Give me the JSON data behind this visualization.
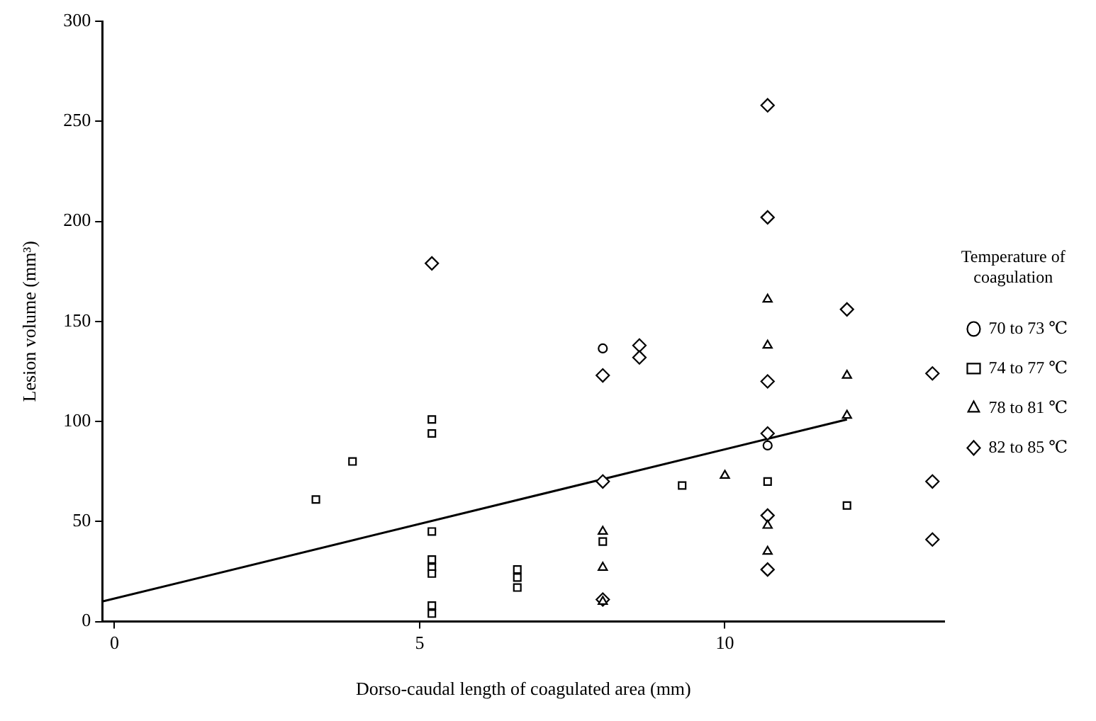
{
  "chart_data": {
    "type": "scatter",
    "xlabel": "Dorso-caudal length of coagulated area (mm)",
    "ylabel": "Lesion volume (mm³)",
    "legend_title": "Temperature of coagulation",
    "legend": "right",
    "xlim": [
      -0.2,
      13.6
    ],
    "xticks": [
      0,
      5,
      10
    ],
    "ylim": [
      0,
      300
    ],
    "yticks": [
      0,
      50,
      100,
      150,
      200,
      250,
      300
    ],
    "series": [
      {
        "name": "70 to 73 ℃",
        "color": "#000000",
        "marker": "circle",
        "x": [
          8.0,
          10.7
        ],
        "values": [
          136.5,
          88
        ]
      },
      {
        "name": "74 to 77 ℃",
        "color": "#000000",
        "marker": "square",
        "x": [
          3.3,
          3.9,
          5.2,
          5.2,
          5.2,
          5.2,
          5.2,
          5.2,
          5.2,
          5.2,
          6.6,
          6.6,
          6.6,
          8.0,
          9.3,
          10.7,
          12.0
        ],
        "values": [
          61,
          80,
          101,
          94,
          45,
          31,
          27,
          24,
          8,
          4,
          26,
          22,
          17,
          40,
          68,
          70,
          58
        ]
      },
      {
        "name": "78 to 81 ℃",
        "color": "#000000",
        "marker": "triangle",
        "x": [
          8.0,
          8.0,
          8.0,
          10.0,
          10.7,
          10.7,
          10.7,
          10.7,
          12.0,
          12.0
        ],
        "values": [
          45,
          27,
          10,
          73,
          161,
          138,
          48,
          35,
          123,
          103
        ]
      },
      {
        "name": "82 to 85 ℃",
        "color": "#000000",
        "marker": "diamond",
        "x": [
          5.2,
          8.0,
          8.0,
          8.0,
          8.6,
          8.6,
          10.7,
          10.7,
          10.7,
          10.7,
          10.7,
          10.7,
          12.0,
          13.4,
          13.4,
          13.4
        ],
        "values": [
          179,
          123,
          70,
          11,
          138,
          132,
          258,
          202,
          120,
          94,
          53,
          26,
          156,
          124,
          70,
          41
        ]
      },
      {
        "type": "line",
        "color": "#000000",
        "x": [
          -0.2,
          12.0
        ],
        "values": [
          10,
          101
        ]
      }
    ]
  }
}
